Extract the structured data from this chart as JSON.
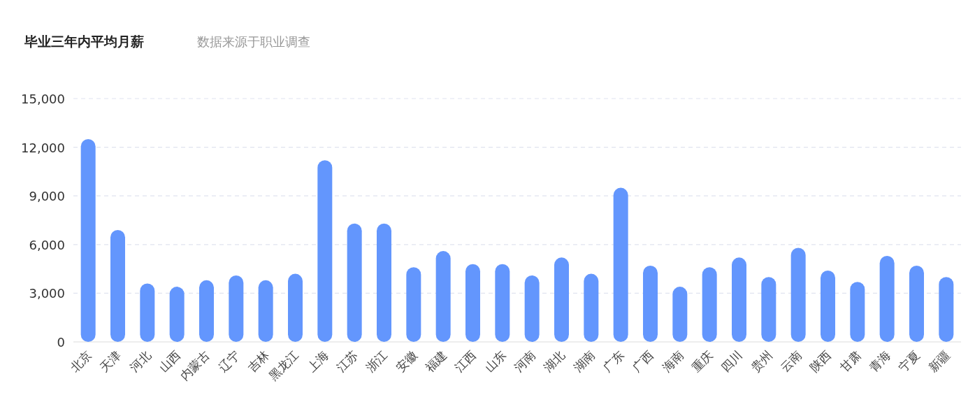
{
  "chart_data": {
    "type": "bar",
    "title": "毕业三年内平均月薪",
    "subtitle": "数据来源于职业调查",
    "categories": [
      "北京",
      "天津",
      "河北",
      "山西",
      "内蒙古",
      "辽宁",
      "吉林",
      "黑龙江",
      "上海",
      "江苏",
      "浙江",
      "安徽",
      "福建",
      "江西",
      "山东",
      "河南",
      "湖北",
      "湖南",
      "广东",
      "广西",
      "海南",
      "重庆",
      "四川",
      "贵州",
      "云南",
      "陕西",
      "甘肃",
      "青海",
      "宁夏",
      "新疆"
    ],
    "values": [
      12500,
      6900,
      3600,
      3400,
      3800,
      4100,
      3800,
      4200,
      11200,
      7300,
      7300,
      4600,
      5600,
      4800,
      4800,
      4100,
      5200,
      4200,
      9500,
      4700,
      3400,
      4600,
      5200,
      4000,
      5800,
      4400,
      3700,
      5300,
      4700,
      4000
    ],
    "color": "#6396fd",
    "ylim": [
      0,
      15000
    ],
    "yticks": [
      {
        "value": 0,
        "label": "0"
      },
      {
        "value": 3000,
        "label": "3,000"
      },
      {
        "value": 6000,
        "label": "6,000"
      },
      {
        "value": 9000,
        "label": "9,000"
      },
      {
        "value": 12000,
        "label": "12,000"
      },
      {
        "value": 15000,
        "label": "15,000"
      }
    ],
    "grid": "y"
  }
}
